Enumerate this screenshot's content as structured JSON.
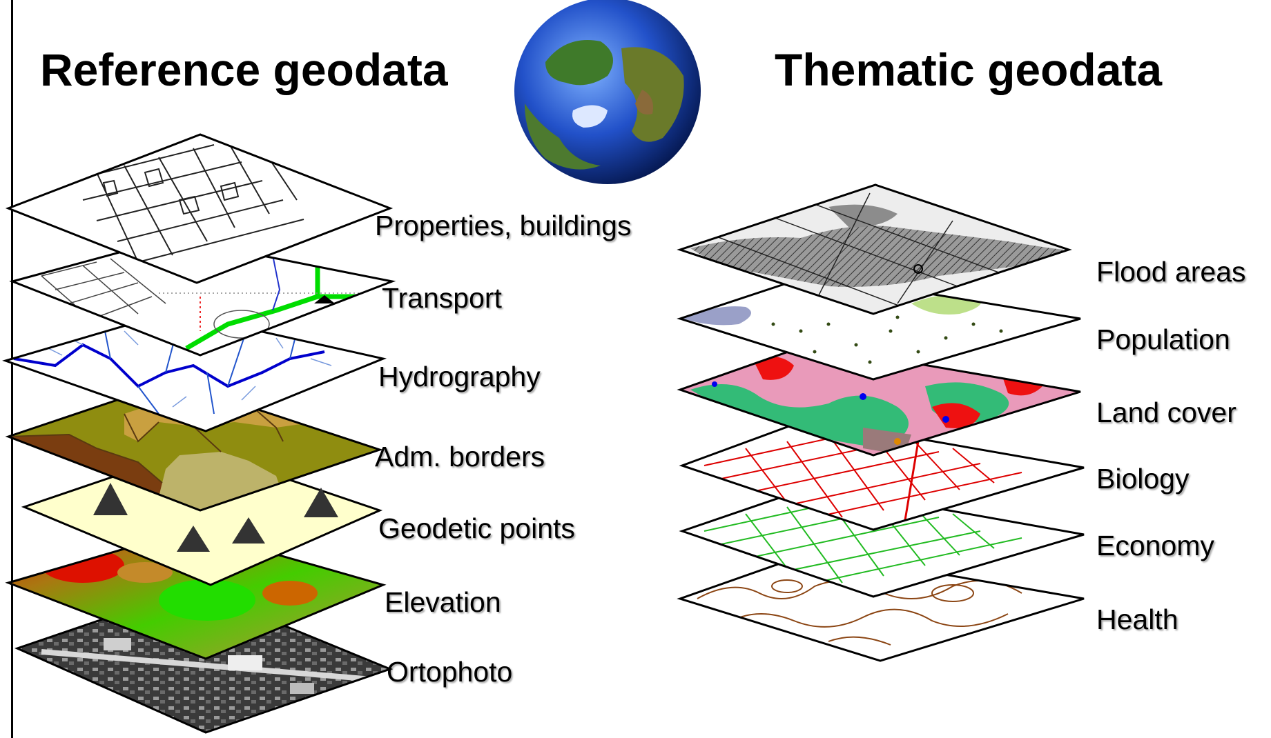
{
  "reference": {
    "title": "Reference geodata",
    "layers": [
      {
        "label": "Properties, buildings"
      },
      {
        "label": "Transport"
      },
      {
        "label": "Hydrography"
      },
      {
        "label": "Adm. borders"
      },
      {
        "label": "Geodetic points"
      },
      {
        "label": "Elevation"
      },
      {
        "label": "Ortophoto"
      }
    ]
  },
  "thematic": {
    "title": "Thematic geodata",
    "layers": [
      {
        "label": "Flood areas"
      },
      {
        "label": "Population"
      },
      {
        "label": "Land cover"
      },
      {
        "label": "Biology"
      },
      {
        "label": "Economy"
      },
      {
        "label": "Health"
      }
    ]
  },
  "colors": {
    "ink": "#000000",
    "water": "#0000cc",
    "road_green": "#00dd00",
    "geodetic_fill": "#ffffcc",
    "biology_lines": "#dd0000",
    "economy_lines": "#22bb22",
    "health_lines": "#8b4513",
    "flood_gray": "#8c8c8c"
  }
}
